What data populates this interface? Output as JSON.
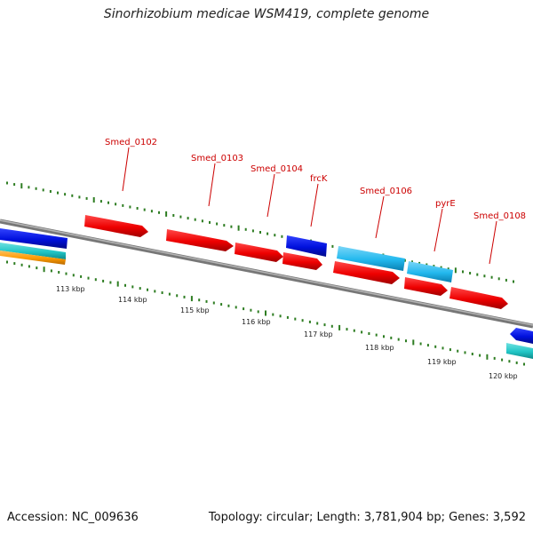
{
  "title": "Sinorhizobium medicae WSM419, complete genome",
  "footer": {
    "accession": "Accession: NC_009636",
    "summary": "Topology: circular; Length: 3,781,904 bp; Genes: 3,592"
  },
  "colors": {
    "backbone": "#8a8a8a",
    "tick": "#2e7d22",
    "label_red": "#cc0000",
    "feature_red": "#ee0000",
    "feature_blue": "#0010dd",
    "feature_lightblue": "#22b8ee",
    "feature_cyan": "#22c6c6",
    "feature_orange": "#ff9a00"
  },
  "scale_labels": [
    "113 kbp",
    "114 kbp",
    "115 kbp",
    "116 kbp",
    "117 kbp",
    "118 kbp",
    "119 kbp",
    "120 kbp"
  ],
  "gene_labels": [
    "Smed_0102",
    "Smed_0103",
    "Smed_0104",
    "frcK",
    "Smed_0106",
    "pyrE",
    "Smed_0108"
  ]
}
